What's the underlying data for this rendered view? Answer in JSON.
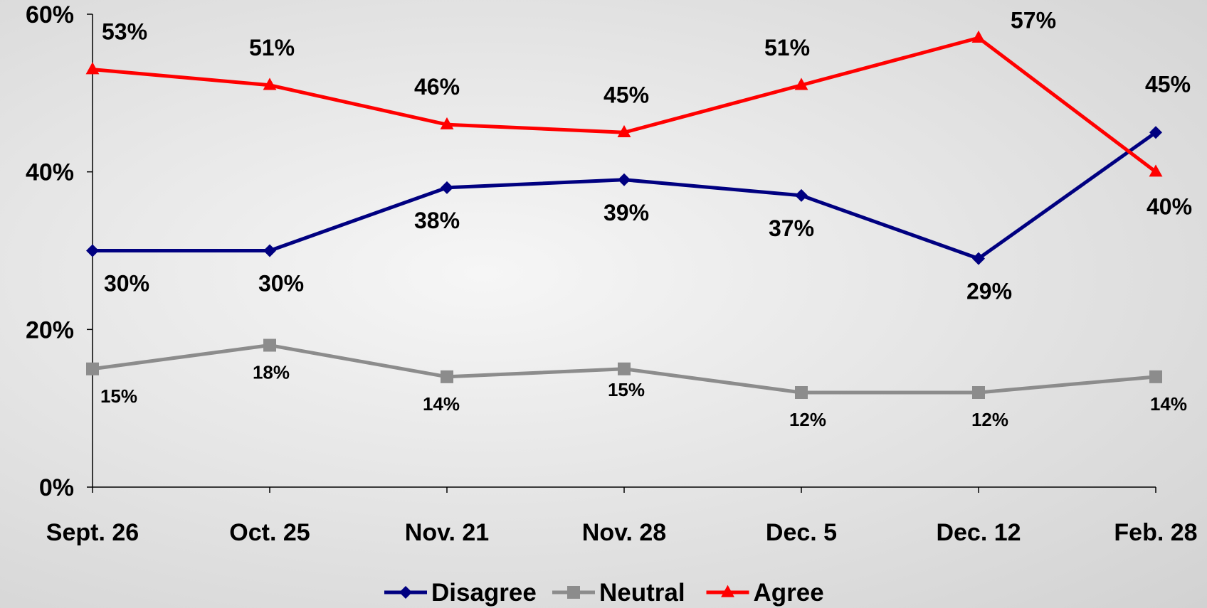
{
  "chart_data": {
    "type": "line",
    "categories": [
      "Sept. 26",
      "Oct. 25",
      "Nov. 21",
      "Nov. 28",
      "Dec. 5",
      "Dec. 12",
      "Feb. 28"
    ],
    "y_ticks": [
      "0%",
      "20%",
      "40%",
      "60%"
    ],
    "ylim": [
      0,
      60
    ],
    "grid": false,
    "legend_position": "bottom",
    "series": [
      {
        "name": "Disagree",
        "color": "#000080",
        "marker": "diamond",
        "values": [
          30,
          30,
          38,
          39,
          37,
          29,
          45
        ],
        "labels": [
          "30%",
          "30%",
          "38%",
          "39%",
          "37%",
          "29%",
          "45%"
        ]
      },
      {
        "name": "Neutral",
        "color": "#8c8c8c",
        "marker": "square",
        "values": [
          15,
          18,
          14,
          15,
          12,
          12,
          14
        ],
        "labels": [
          "15%",
          "18%",
          "14%",
          "15%",
          "12%",
          "12%",
          "14%"
        ]
      },
      {
        "name": "Agree",
        "color": "#ff0000",
        "marker": "triangle",
        "values": [
          53,
          51,
          46,
          45,
          51,
          57,
          40
        ],
        "labels": [
          "53%",
          "51%",
          "46%",
          "45%",
          "51%",
          "57%",
          "40%"
        ]
      }
    ]
  }
}
